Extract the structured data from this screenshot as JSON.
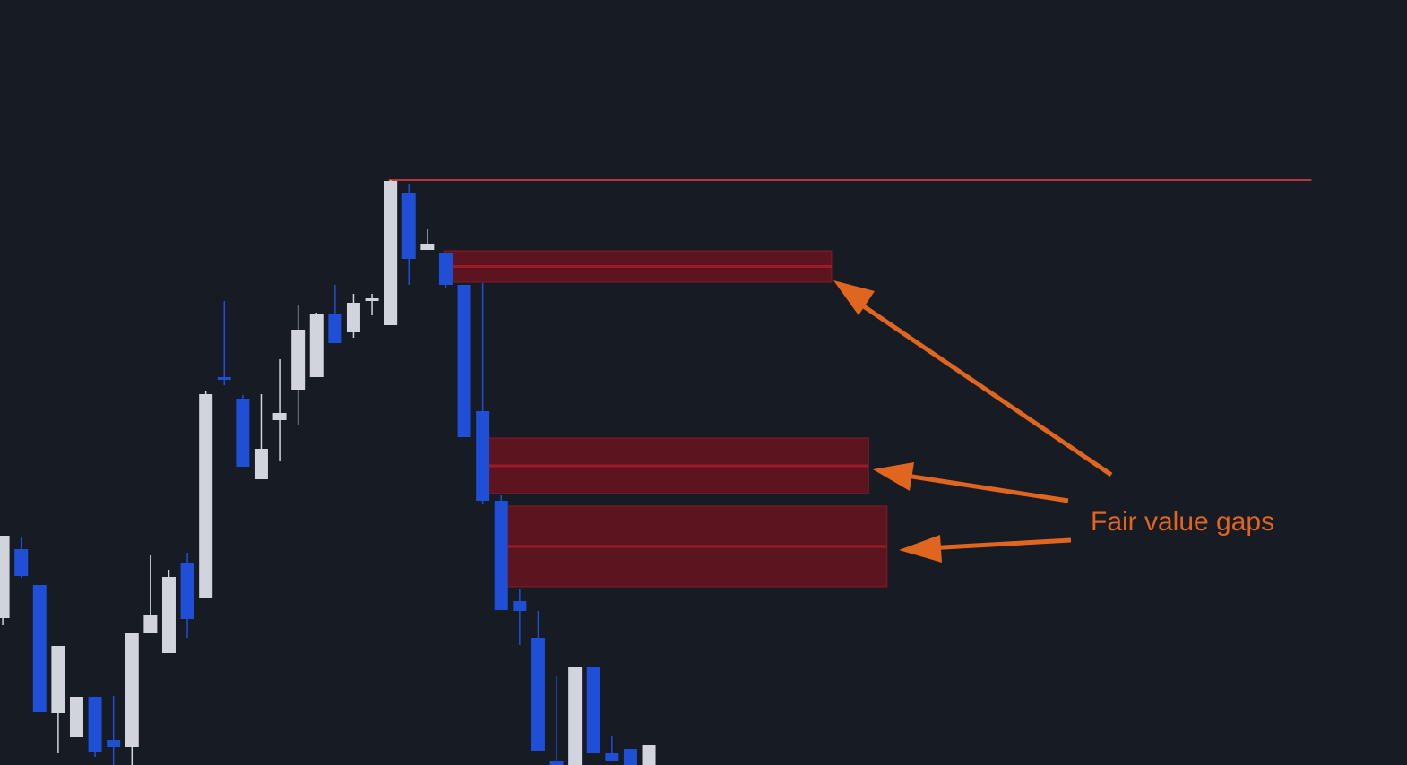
{
  "chart_data": {
    "type": "candlestick",
    "x": [
      0,
      1,
      2,
      3,
      4,
      5,
      6,
      7,
      8,
      9,
      10,
      11,
      12,
      13,
      14,
      15,
      16,
      17,
      18,
      19,
      20,
      21,
      22,
      23,
      24,
      25,
      26,
      27,
      28,
      29,
      30,
      31,
      32,
      33,
      34,
      35
    ],
    "open": [
      164,
      241,
      201,
      58,
      31,
      76,
      28,
      20,
      147,
      125,
      226,
      186,
      433,
      409,
      319,
      385,
      419,
      433,
      503,
      483,
      518,
      491,
      639,
      575,
      572,
      536,
      395,
      295,
      183,
      142,
      5,
      0,
      109,
      13,
      18,
      0
    ],
    "high": [
      256,
      254,
      201,
      133,
      76,
      76,
      77,
      147,
      234,
      218,
      237,
      418,
      518,
      413,
      414,
      453,
      513,
      505,
      536,
      526,
      526,
      653,
      649,
      598,
      572,
      536,
      538,
      301,
      197,
      172,
      99,
      109,
      109,
      32,
      18,
      22
    ],
    "low": [
      156,
      209,
      59,
      13,
      31,
      9,
      0,
      0,
      147,
      125,
      142,
      186,
      424,
      333,
      319,
      339,
      380,
      433,
      471,
      477,
      502,
      491,
      536,
      575,
      532,
      366,
      291,
      173,
      134,
      16,
      0,
      0,
      13,
      5,
      0,
      0
    ],
    "close": [
      256,
      211,
      59,
      133,
      76,
      14,
      20,
      147,
      167,
      210,
      163,
      414,
      430,
      333,
      353,
      393,
      486,
      503,
      471,
      516,
      521,
      652,
      565,
      582,
      536,
      366,
      295,
      173,
      172,
      16,
      0,
      109,
      13,
      5,
      0,
      22
    ],
    "up_color": "#d1d4dc",
    "down_color": "#1f4fd6",
    "xlim": [
      -0.15,
      76.07
    ],
    "ylim": [
      0,
      854
    ],
    "zones": [
      {
        "x": [
          23.9,
          44.9
        ],
        "low": 539,
        "high": 574
      },
      {
        "x": [
          26.2,
          46.9
        ],
        "low": 303,
        "high": 365
      },
      {
        "x": [
          27.3,
          47.9
        ],
        "low": 199,
        "high": 289
      }
    ],
    "zone_color": "#5c141f",
    "level": {
      "value": 653,
      "x": [
        20.9,
        70.9
      ],
      "color": "#c0333a"
    },
    "annotation": "Fair value gaps"
  }
}
